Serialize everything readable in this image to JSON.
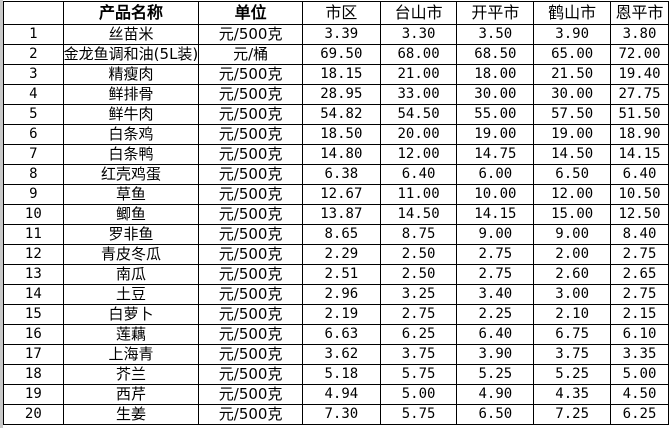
{
  "headers": {
    "index": "",
    "name": "产品名称",
    "unit": "单位",
    "cities": [
      "市区",
      "台山市",
      "开平市",
      "鹤山市",
      "恩平市"
    ]
  },
  "rows": [
    {
      "no": "1",
      "name": "丝苗米",
      "unit": "元/500克",
      "prices": [
        "3.39",
        "3.30",
        "3.50",
        "3.90",
        "3.80"
      ]
    },
    {
      "no": "2",
      "name": "金龙鱼调和油(5L装)",
      "unit": "元/桶",
      "prices": [
        "69.50",
        "68.00",
        "68.50",
        "65.00",
        "72.00"
      ]
    },
    {
      "no": "3",
      "name": "精瘦肉",
      "unit": "元/500克",
      "prices": [
        "18.15",
        "21.00",
        "18.00",
        "21.50",
        "19.40"
      ]
    },
    {
      "no": "4",
      "name": "鲜排骨",
      "unit": "元/500克",
      "prices": [
        "28.95",
        "33.00",
        "30.00",
        "30.00",
        "27.75"
      ]
    },
    {
      "no": "5",
      "name": "鲜牛肉",
      "unit": "元/500克",
      "prices": [
        "54.82",
        "54.50",
        "55.00",
        "57.50",
        "51.50"
      ]
    },
    {
      "no": "6",
      "name": "白条鸡",
      "unit": "元/500克",
      "prices": [
        "18.50",
        "20.00",
        "19.00",
        "19.00",
        "18.90"
      ]
    },
    {
      "no": "7",
      "name": "白条鸭",
      "unit": "元/500克",
      "prices": [
        "14.80",
        "12.00",
        "14.75",
        "14.50",
        "14.15"
      ]
    },
    {
      "no": "8",
      "name": "红壳鸡蛋",
      "unit": "元/500克",
      "prices": [
        "6.38",
        "6.40",
        "6.00",
        "6.50",
        "6.40"
      ]
    },
    {
      "no": "9",
      "name": "草鱼",
      "unit": "元/500克",
      "prices": [
        "12.67",
        "11.00",
        "10.00",
        "12.00",
        "10.50"
      ]
    },
    {
      "no": "10",
      "name": "鲫鱼",
      "unit": "元/500克",
      "prices": [
        "13.87",
        "14.50",
        "14.15",
        "15.00",
        "12.50"
      ]
    },
    {
      "no": "11",
      "name": "罗非鱼",
      "unit": "元/500克",
      "prices": [
        "8.65",
        "8.75",
        "9.00",
        "9.00",
        "8.40"
      ]
    },
    {
      "no": "12",
      "name": "青皮冬瓜",
      "unit": "元/500克",
      "prices": [
        "2.29",
        "2.50",
        "2.75",
        "2.00",
        "2.75"
      ]
    },
    {
      "no": "13",
      "name": "南瓜",
      "unit": "元/500克",
      "prices": [
        "2.51",
        "2.50",
        "2.75",
        "2.60",
        "2.65"
      ]
    },
    {
      "no": "14",
      "name": "土豆",
      "unit": "元/500克",
      "prices": [
        "2.96",
        "3.25",
        "3.40",
        "3.00",
        "2.75"
      ]
    },
    {
      "no": "15",
      "name": "白萝卜",
      "unit": "元/500克",
      "prices": [
        "2.19",
        "2.75",
        "2.25",
        "2.10",
        "2.15"
      ]
    },
    {
      "no": "16",
      "name": "莲藕",
      "unit": "元/500克",
      "prices": [
        "6.63",
        "6.25",
        "6.40",
        "6.75",
        "6.10"
      ]
    },
    {
      "no": "17",
      "name": "上海青",
      "unit": "元/500克",
      "prices": [
        "3.62",
        "3.75",
        "3.90",
        "3.75",
        "3.35"
      ]
    },
    {
      "no": "18",
      "name": "芥兰",
      "unit": "元/500克",
      "prices": [
        "5.18",
        "5.75",
        "5.25",
        "5.25",
        "5.00"
      ]
    },
    {
      "no": "19",
      "name": "西芹",
      "unit": "元/500克",
      "prices": [
        "4.94",
        "5.00",
        "4.90",
        "4.35",
        "4.50"
      ]
    },
    {
      "no": "20",
      "name": "生姜",
      "unit": "元/500克",
      "prices": [
        "7.30",
        "5.75",
        "6.50",
        "7.25",
        "6.25"
      ]
    }
  ]
}
